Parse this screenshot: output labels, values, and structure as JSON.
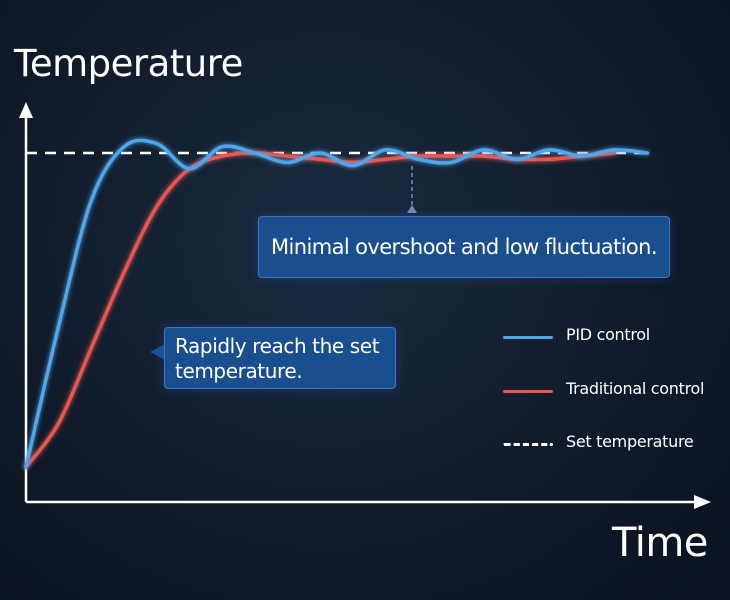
{
  "chart_data": {
    "type": "line",
    "ylabel": "Temperature",
    "xlabel": "Time",
    "grid": false,
    "legend_position": "right",
    "ylim": [
      0,
      1.1
    ],
    "xlim": [
      0,
      10
    ],
    "series": [
      {
        "name": "PID control",
        "color": "#4fa6ea",
        "x": [
          0,
          0.5,
          1.0,
          1.5,
          2.0,
          2.5,
          3.0,
          3.5,
          4.0,
          4.5,
          5.0,
          5.5,
          6.0,
          6.5,
          7.0,
          7.5,
          8.0,
          8.5,
          9.0,
          9.5
        ],
        "y": [
          0.0,
          0.45,
          0.85,
          1.02,
          1.03,
          0.95,
          1.02,
          1.0,
          0.97,
          1.0,
          0.96,
          1.01,
          0.98,
          0.97,
          1.01,
          0.98,
          1.01,
          0.99,
          1.01,
          1.0
        ]
      },
      {
        "name": "Traditional control",
        "color": "#e8564f",
        "x": [
          0,
          0.5,
          1.0,
          1.5,
          2.0,
          2.5,
          3.0,
          3.5,
          4.0,
          4.5,
          5.0,
          5.5,
          6.0,
          6.5,
          7.0,
          7.5,
          8.0,
          8.5,
          9.0
        ],
        "y": [
          0.0,
          0.14,
          0.38,
          0.62,
          0.83,
          0.95,
          0.99,
          1.0,
          0.99,
          0.98,
          0.97,
          0.98,
          0.99,
          0.99,
          0.99,
          0.98,
          0.98,
          0.99,
          1.0
        ]
      },
      {
        "name": "Set temperature",
        "color": "#ffffff",
        "style": "dashed",
        "x": [
          0,
          9.5
        ],
        "y": [
          1.0,
          1.0
        ]
      }
    ],
    "annotations": [
      "Minimal overshoot and low fluctuation.",
      "Rapidly reach the set temperature."
    ]
  }
}
